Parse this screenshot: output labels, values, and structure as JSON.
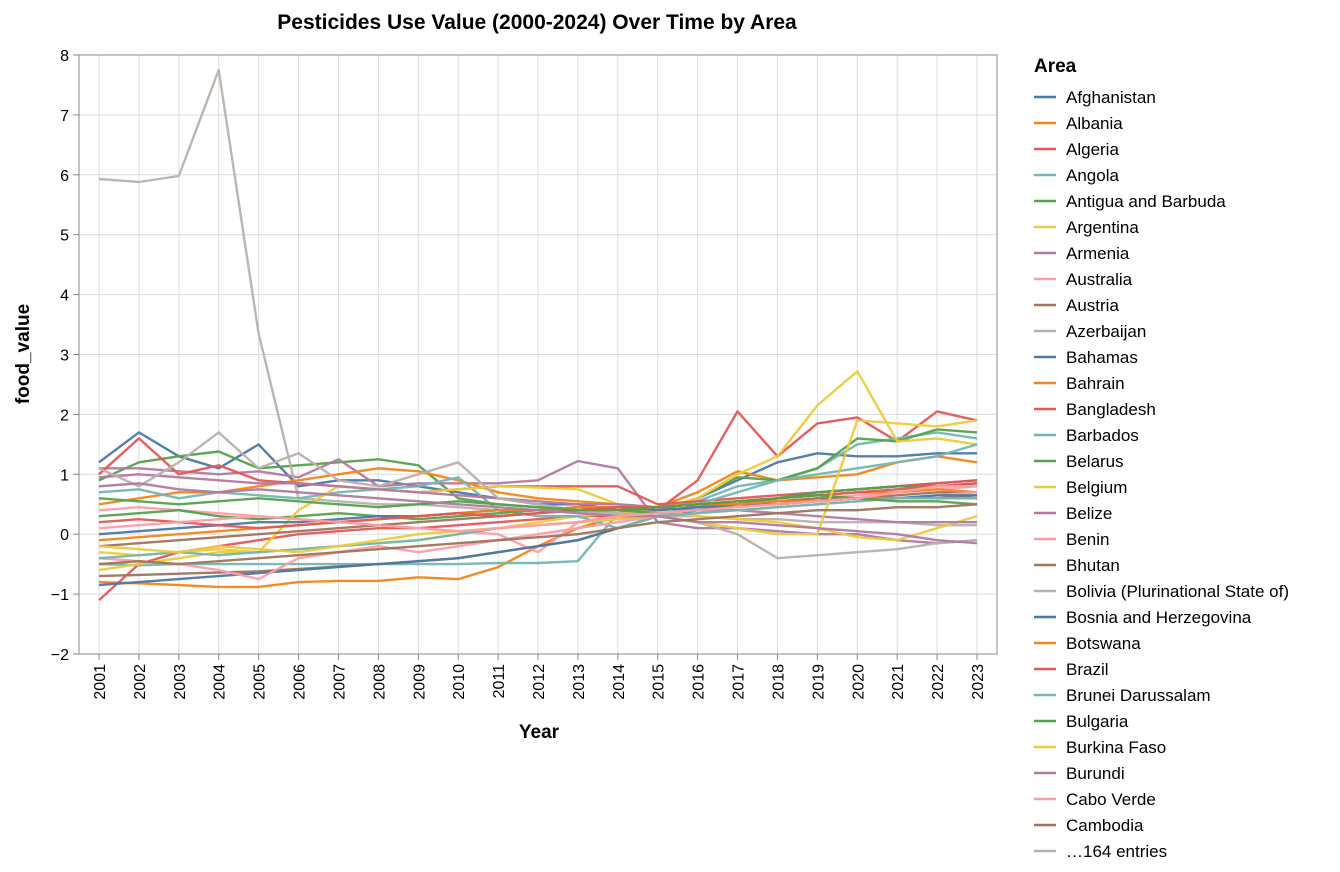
{
  "chart_data": {
    "type": "line",
    "title": "Pesticides Use Value (2000-2024) Over Time by Area",
    "xlabel": "Year",
    "ylabel": "food_value",
    "ylim": [
      -2,
      8
    ],
    "yticks": [
      -2,
      -1,
      0,
      1,
      2,
      3,
      4,
      5,
      6,
      7,
      8
    ],
    "ytick_labels": [
      "−2",
      "−1",
      "0",
      "1",
      "2",
      "3",
      "4",
      "5",
      "6",
      "7",
      "8"
    ],
    "x": [
      2001,
      2002,
      2003,
      2004,
      2005,
      2006,
      2007,
      2008,
      2009,
      2010,
      2011,
      2012,
      2013,
      2014,
      2015,
      2016,
      2017,
      2018,
      2019,
      2020,
      2021,
      2022,
      2023
    ],
    "xtick_labels": [
      "2001",
      "2002",
      "2003",
      "2004",
      "2005",
      "2006",
      "2007",
      "2008",
      "2009",
      "2010",
      "2011",
      "2012",
      "2013",
      "2014",
      "2015",
      "2016",
      "2017",
      "2018",
      "2019",
      "2020",
      "2021",
      "2022",
      "2023"
    ],
    "grid": true,
    "legend": {
      "title": "Area",
      "placement": "right",
      "more_label": "…164 entries",
      "more_color": "#bab0ac"
    },
    "series": [
      {
        "name": "Afghanistan",
        "color": "#4c78a8",
        "values": [
          1.2,
          1.7,
          1.3,
          1.1,
          1.5,
          0.8,
          0.9,
          0.9,
          0.8,
          0.7,
          0.6,
          0.5,
          0.5,
          0.4,
          0.4,
          0.6,
          0.9,
          1.2,
          1.35,
          1.3,
          1.3,
          1.35,
          1.35
        ]
      },
      {
        "name": "Albania",
        "color": "#f58518",
        "values": [
          -0.8,
          -0.82,
          -0.85,
          -0.88,
          -0.88,
          -0.8,
          -0.78,
          -0.78,
          -0.72,
          -0.75,
          -0.55,
          -0.2,
          0.1,
          0.3,
          0.45,
          0.7,
          1.05,
          0.9,
          0.95,
          1.0,
          1.2,
          1.3,
          1.2
        ]
      },
      {
        "name": "Algeria",
        "color": "#e45756",
        "values": [
          -1.1,
          -0.5,
          -0.3,
          -0.2,
          -0.1,
          0.0,
          0.05,
          0.1,
          0.1,
          0.15,
          0.2,
          0.25,
          0.3,
          0.3,
          0.4,
          0.9,
          2.05,
          1.3,
          1.85,
          1.95,
          1.55,
          2.05,
          1.9
        ]
      },
      {
        "name": "Angola",
        "color": "#72b7b2",
        "values": [
          -0.5,
          -0.52,
          -0.5,
          -0.5,
          -0.5,
          -0.5,
          -0.5,
          -0.5,
          -0.5,
          -0.5,
          -0.48,
          -0.48,
          -0.45,
          0.35,
          0.45,
          0.55,
          0.8,
          0.9,
          1.1,
          1.5,
          1.6,
          1.7,
          1.6
        ]
      },
      {
        "name": "Antigua and Barbuda",
        "color": "#54a24b",
        "values": [
          0.9,
          1.2,
          1.3,
          1.38,
          1.1,
          1.15,
          1.2,
          1.25,
          1.15,
          0.6,
          0.5,
          0.45,
          0.4,
          0.4,
          0.4,
          0.6,
          0.95,
          0.9,
          1.1,
          1.6,
          1.55,
          1.75,
          1.7
        ]
      },
      {
        "name": "Argentina",
        "color": "#eeca3b",
        "values": [
          -0.6,
          -0.5,
          -0.4,
          -0.3,
          -0.3,
          -0.25,
          -0.2,
          -0.15,
          -0.1,
          0.0,
          0.1,
          0.2,
          0.3,
          0.35,
          0.4,
          0.6,
          1.0,
          1.3,
          2.15,
          2.72,
          1.55,
          1.6,
          1.5
        ]
      },
      {
        "name": "Armenia",
        "color": "#b279a2",
        "values": [
          1.1,
          1.1,
          1.05,
          1.0,
          1.05,
          0.95,
          1.25,
          0.8,
          0.85,
          0.85,
          0.85,
          0.9,
          1.22,
          1.1,
          0.2,
          0.1,
          0.1,
          0.05,
          0.0,
          0.0,
          -0.1,
          -0.15,
          -0.1
        ]
      },
      {
        "name": "Australia",
        "color": "#ff9da6",
        "values": [
          0.4,
          0.45,
          0.4,
          0.35,
          0.3,
          0.25,
          0.2,
          0.15,
          0.1,
          0.05,
          0.0,
          -0.3,
          0.2,
          0.3,
          0.4,
          0.45,
          0.5,
          0.55,
          0.6,
          0.65,
          0.7,
          0.75,
          0.8
        ]
      },
      {
        "name": "Austria",
        "color": "#9d755d",
        "values": [
          -0.7,
          -0.68,
          -0.66,
          -0.64,
          -0.62,
          -0.58,
          -0.54,
          -0.5,
          -0.45,
          -0.4,
          -0.3,
          -0.2,
          -0.1,
          0.1,
          0.3,
          0.4,
          0.5,
          0.55,
          0.6,
          0.6,
          0.65,
          0.7,
          0.7
        ]
      },
      {
        "name": "Azerbaijan",
        "color": "#bab0ac",
        "values": [
          5.93,
          5.88,
          5.98,
          7.75,
          3.35,
          0.6,
          0.55,
          0.5,
          0.5,
          0.45,
          0.4,
          0.4,
          0.38,
          0.35,
          0.3,
          0.3,
          0.25,
          0.25,
          0.2,
          0.2,
          0.2,
          0.15,
          0.15
        ]
      },
      {
        "name": "Bahamas",
        "color": "#4c78a8",
        "values": [
          -0.85,
          -0.8,
          -0.75,
          -0.7,
          -0.65,
          -0.6,
          -0.55,
          -0.5,
          -0.45,
          -0.4,
          -0.3,
          -0.2,
          -0.1,
          0.1,
          0.3,
          0.4,
          0.5,
          0.6,
          0.7,
          0.75,
          0.8,
          0.85,
          0.9
        ]
      },
      {
        "name": "Bahrain",
        "color": "#f58518",
        "values": [
          0.5,
          0.6,
          0.7,
          0.7,
          0.8,
          0.9,
          1.0,
          1.1,
          1.05,
          0.9,
          0.7,
          0.6,
          0.55,
          0.5,
          0.45,
          0.5,
          0.55,
          0.6,
          0.65,
          0.7,
          0.7,
          0.75,
          0.7
        ]
      },
      {
        "name": "Bangladesh",
        "color": "#e45756",
        "values": [
          1.0,
          1.6,
          1.0,
          1.15,
          0.9,
          0.85,
          0.8,
          0.75,
          0.7,
          0.75,
          0.8,
          0.8,
          0.8,
          0.8,
          0.5,
          0.55,
          0.6,
          0.65,
          0.7,
          0.75,
          0.8,
          0.85,
          0.9
        ]
      },
      {
        "name": "Barbados",
        "color": "#72b7b2",
        "values": [
          0.7,
          0.75,
          0.6,
          0.7,
          0.65,
          0.6,
          0.7,
          0.75,
          0.8,
          0.95,
          0.4,
          0.3,
          0.3,
          0.1,
          0.3,
          0.5,
          0.7,
          0.9,
          1.0,
          1.1,
          1.2,
          1.3,
          1.5
        ]
      },
      {
        "name": "Belarus",
        "color": "#54a24b",
        "values": [
          0.3,
          0.35,
          0.4,
          0.3,
          0.25,
          0.3,
          0.35,
          0.3,
          0.25,
          0.3,
          0.35,
          0.4,
          0.45,
          0.4,
          0.35,
          0.4,
          0.5,
          0.6,
          0.7,
          0.75,
          0.8,
          0.8,
          0.85
        ]
      },
      {
        "name": "Belgium",
        "color": "#eeca3b",
        "values": [
          -0.3,
          -0.35,
          -0.3,
          -0.25,
          -0.3,
          0.4,
          0.8,
          0.75,
          0.7,
          0.75,
          0.8,
          0.78,
          0.75,
          0.5,
          0.4,
          0.3,
          0.25,
          0.2,
          0.1,
          -0.05,
          -0.1,
          0.1,
          0.3
        ]
      },
      {
        "name": "Belize",
        "color": "#b279a2",
        "values": [
          0.95,
          1.0,
          0.95,
          0.9,
          0.85,
          0.85,
          0.8,
          0.75,
          0.7,
          0.65,
          0.6,
          0.55,
          0.5,
          0.5,
          0.45,
          0.4,
          0.4,
          0.35,
          0.3,
          0.25,
          0.2,
          0.2,
          0.2
        ]
      },
      {
        "name": "Benin",
        "color": "#ff9da6",
        "values": [
          -0.4,
          -0.45,
          -0.5,
          -0.6,
          -0.75,
          -0.4,
          -0.3,
          -0.2,
          -0.3,
          -0.2,
          -0.1,
          0.0,
          0.1,
          0.2,
          0.3,
          0.35,
          0.4,
          0.45,
          0.5,
          0.55,
          0.6,
          0.65,
          0.7
        ]
      },
      {
        "name": "Bhutan",
        "color": "#9d755d",
        "values": [
          -0.2,
          -0.15,
          -0.1,
          -0.05,
          0.0,
          0.05,
          0.1,
          0.15,
          0.2,
          0.25,
          0.3,
          0.35,
          0.4,
          0.4,
          0.45,
          0.5,
          0.5,
          0.55,
          0.55,
          0.6,
          0.6,
          0.6,
          0.65
        ]
      },
      {
        "name": "Bolivia (Plurinational State of)",
        "color": "#bab0ac",
        "values": [
          1.1,
          0.8,
          1.2,
          1.7,
          1.1,
          1.35,
          0.9,
          0.8,
          1.0,
          1.2,
          0.6,
          0.5,
          0.4,
          0.3,
          0.3,
          0.2,
          0.0,
          -0.4,
          -0.35,
          -0.3,
          -0.25,
          -0.15,
          -0.1
        ]
      },
      {
        "name": "Bosnia and Herzegovina",
        "color": "#4c78a8",
        "values": [
          0.0,
          0.05,
          0.1,
          0.15,
          0.2,
          0.2,
          0.25,
          0.3,
          0.3,
          0.35,
          0.4,
          0.4,
          0.45,
          0.45,
          0.4,
          0.45,
          0.5,
          0.5,
          0.55,
          0.6,
          0.6,
          0.65,
          0.65
        ]
      },
      {
        "name": "Botswana",
        "color": "#f58518",
        "values": [
          -0.1,
          -0.05,
          0.0,
          0.05,
          0.1,
          0.15,
          0.2,
          0.25,
          0.3,
          0.35,
          0.4,
          0.4,
          0.45,
          0.45,
          0.45,
          0.5,
          0.5,
          0.55,
          0.55,
          0.6,
          0.6,
          0.6,
          0.6
        ]
      },
      {
        "name": "Brazil",
        "color": "#e45756",
        "values": [
          0.2,
          0.25,
          0.2,
          0.15,
          0.1,
          0.15,
          0.2,
          0.25,
          0.3,
          0.35,
          0.3,
          0.35,
          0.4,
          0.45,
          0.45,
          0.5,
          0.55,
          0.6,
          0.65,
          0.7,
          0.75,
          0.8,
          0.85
        ]
      },
      {
        "name": "Brunei Darussalam",
        "color": "#72b7b2",
        "values": [
          -0.4,
          -0.35,
          -0.3,
          -0.35,
          -0.3,
          -0.25,
          -0.2,
          -0.15,
          -0.1,
          0.0,
          0.1,
          0.15,
          0.2,
          0.25,
          0.3,
          0.35,
          0.4,
          0.45,
          0.5,
          0.55,
          0.6,
          0.6,
          0.6
        ]
      },
      {
        "name": "Bulgaria",
        "color": "#54a24b",
        "values": [
          0.6,
          0.55,
          0.5,
          0.55,
          0.6,
          0.55,
          0.5,
          0.45,
          0.5,
          0.55,
          0.5,
          0.45,
          0.4,
          0.4,
          0.45,
          0.5,
          0.55,
          0.6,
          0.65,
          0.6,
          0.55,
          0.55,
          0.5
        ]
      },
      {
        "name": "Burkina Faso",
        "color": "#eeca3b",
        "values": [
          -0.2,
          -0.25,
          -0.3,
          -0.2,
          -0.25,
          -0.3,
          -0.2,
          -0.1,
          0.0,
          0.05,
          0.1,
          0.15,
          0.2,
          0.25,
          0.3,
          0.2,
          0.1,
          0.0,
          0.0,
          1.9,
          1.85,
          1.8,
          1.9
        ]
      },
      {
        "name": "Burundi",
        "color": "#b279a2",
        "values": [
          0.8,
          0.85,
          0.75,
          0.7,
          0.75,
          0.7,
          0.65,
          0.6,
          0.55,
          0.5,
          0.45,
          0.4,
          0.35,
          0.3,
          0.3,
          0.2,
          0.2,
          0.15,
          0.1,
          0.05,
          0.0,
          -0.1,
          -0.15
        ]
      },
      {
        "name": "Cabo Verde",
        "color": "#ff9da6",
        "values": [
          0.1,
          0.15,
          0.2,
          0.25,
          0.3,
          0.25,
          0.2,
          0.15,
          0.1,
          0.05,
          0.1,
          0.15,
          0.2,
          0.3,
          0.35,
          0.4,
          0.45,
          0.5,
          0.55,
          0.6,
          0.7,
          0.8,
          0.8
        ]
      },
      {
        "name": "Cambodia",
        "color": "#9d755d",
        "values": [
          -0.5,
          -0.45,
          -0.5,
          -0.45,
          -0.4,
          -0.35,
          -0.3,
          -0.25,
          -0.2,
          -0.15,
          -0.1,
          -0.05,
          0.0,
          0.1,
          0.2,
          0.25,
          0.3,
          0.35,
          0.4,
          0.4,
          0.45,
          0.45,
          0.5
        ]
      }
    ]
  }
}
